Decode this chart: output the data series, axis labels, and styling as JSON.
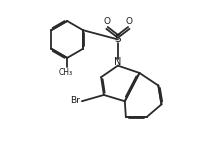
{
  "background_color": "#ffffff",
  "bond_color": "#2a2a2a",
  "text_color": "#1a1a1a",
  "lw": 1.3,
  "figsize": [
    2.14,
    1.48
  ],
  "dpi": 100,
  "xlim": [
    0,
    10
  ],
  "ylim": [
    0,
    7
  ],
  "label_N": "N",
  "label_S": "S",
  "label_O": "O",
  "label_Br": "Br"
}
